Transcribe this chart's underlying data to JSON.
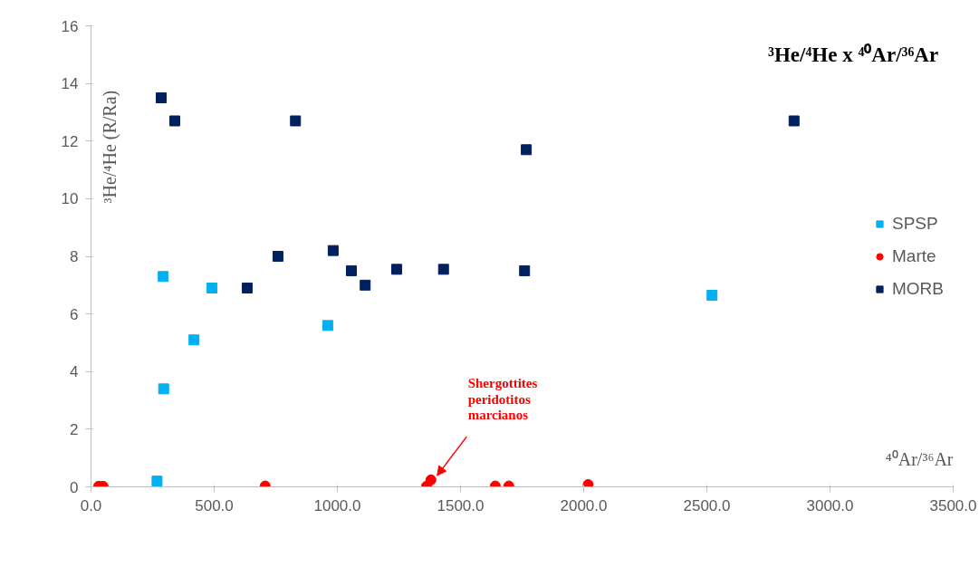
{
  "chart_data": {
    "type": "scatter",
    "title": "³He/⁴He x ⁴⁰Ar/³⁶Ar",
    "xlabel": "⁴⁰Ar/³⁶Ar",
    "ylabel": "³He/⁴He (R/Ra)",
    "xlim": [
      0,
      3500
    ],
    "ylim": [
      0,
      16
    ],
    "xticks": [
      {
        "value": 0,
        "label": "0.0"
      },
      {
        "value": 500,
        "label": "500.0"
      },
      {
        "value": 1000,
        "label": "1000.0"
      },
      {
        "value": 1500,
        "label": "1500.0"
      },
      {
        "value": 2000,
        "label": "2000.0"
      },
      {
        "value": 2500,
        "label": "2500.0"
      },
      {
        "value": 3000,
        "label": "3000.0"
      },
      {
        "value": 3500,
        "label": "3500.0"
      }
    ],
    "yticks": [
      0,
      2,
      4,
      6,
      8,
      10,
      12,
      14,
      16
    ],
    "grid": false,
    "legend": "right",
    "series": [
      {
        "name": "SPSP",
        "color": "#00b0f0",
        "marker": "square",
        "x": [
          268,
          293,
          295,
          418,
          491,
          961,
          2521
        ],
        "values": [
          0.2,
          7.3,
          3.4,
          5.1,
          6.9,
          5.6,
          6.65
        ]
      },
      {
        "name": "Marte",
        "color": "#ff0000",
        "marker": "circle",
        "x": [
          31,
          49,
          707,
          1362,
          1380,
          1641,
          1696,
          2018
        ],
        "values": [
          0.02,
          0.02,
          0.03,
          0.02,
          0.24,
          0.03,
          0.03,
          0.08
        ]
      },
      {
        "name": "MORB",
        "color": "#002060",
        "marker": "square",
        "x": [
          285,
          340,
          830,
          634,
          759,
          983,
          1057,
          1113,
          1241,
          1431,
          1767,
          1760,
          2854
        ],
        "values": [
          13.5,
          12.7,
          12.7,
          6.9,
          8.0,
          8.2,
          7.5,
          7.0,
          7.55,
          7.55,
          11.7,
          7.5,
          12.7
        ]
      }
    ],
    "annotations": [
      {
        "text": "Shergottites\nperidotitos\nmarcianos",
        "x": 1380,
        "y": 0.24
      }
    ]
  }
}
